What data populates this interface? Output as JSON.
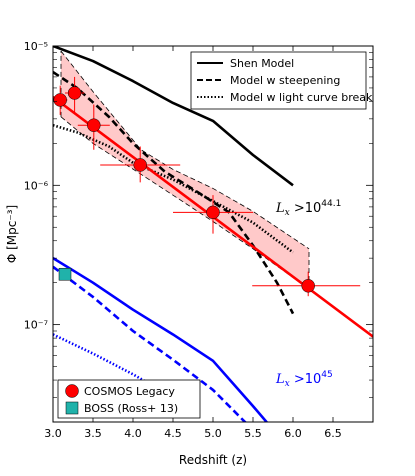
{
  "chart_data": {
    "type": "line",
    "xlabel": "Redshift (z)",
    "ylabel": "Φ [Mpc⁻³]",
    "xlim": [
      3.0,
      7.0
    ],
    "ylim": [
      2e-08,
      1e-05
    ],
    "yscale": "log",
    "x_ticks": [
      3.0,
      3.5,
      4.0,
      4.5,
      5.0,
      5.5,
      6.0,
      6.5
    ],
    "x_tick_labels": [
      "3.0",
      "3.5",
      "4.0",
      "4.5",
      "5.0",
      "5.5",
      "6.0",
      "6.5"
    ],
    "y_tick_labels": [
      "10⁻⁷",
      "10⁻⁶",
      "10⁻⁵"
    ],
    "line_legend_position": "top-right",
    "marker_legend_position": "bottom-left",
    "annotations": [
      {
        "text": "Lx >10^44.1",
        "color": "#000000"
      },
      {
        "text": "Lx >10^45",
        "color": "#0000ff"
      }
    ],
    "line_legend": [
      {
        "label": "Shen Model",
        "style": "solid"
      },
      {
        "label": "Model w steepening",
        "style": "dashed"
      },
      {
        "label": "Model w light curve break",
        "style": "dotted"
      }
    ],
    "marker_legend": [
      {
        "label": "COSMOS Legacy",
        "color": "#ff0000",
        "shape": "circle"
      },
      {
        "label": "BOSS (Ross+ 13)",
        "color": "#20b2aa",
        "shape": "square"
      }
    ],
    "lines": [
      {
        "group": "44.1",
        "style": "solid",
        "color": "#000000",
        "x": [
          3.0,
          3.5,
          4.0,
          4.5,
          5.0,
          5.5,
          6.0
        ],
        "y": [
          1e-05,
          7.8e-06,
          5.6e-06,
          3.9e-06,
          2.9e-06,
          1.65e-06,
          1e-06
        ]
      },
      {
        "group": "44.1",
        "style": "dashed",
        "color": "#000000",
        "x": [
          3.0,
          3.3,
          3.7,
          4.0,
          4.4,
          4.8,
          5.2,
          5.5,
          5.8,
          6.0
        ],
        "y": [
          6.5e-06,
          5e-06,
          3.1e-06,
          2e-06,
          1.25e-06,
          9e-07,
          6.4e-07,
          3.7e-07,
          2e-07,
          1.2e-07
        ]
      },
      {
        "group": "44.1",
        "style": "dotted",
        "color": "#000000",
        "x": [
          3.0,
          3.3,
          3.7,
          4.0,
          4.5,
          5.0,
          5.5,
          6.0
        ],
        "y": [
          2.7e-06,
          2.4e-06,
          1.9e-06,
          1.45e-06,
          1.1e-06,
          7.7e-07,
          5.4e-07,
          3.3e-07
        ]
      },
      {
        "group": "45",
        "style": "solid",
        "color": "#0000ff",
        "x": [
          3.0,
          3.5,
          4.0,
          4.5,
          5.0,
          5.5,
          6.0
        ],
        "y": [
          3e-07,
          2e-07,
          1.28e-07,
          8.5e-08,
          5.5e-08,
          2.6e-08,
          1.2e-08
        ]
      },
      {
        "group": "45",
        "style": "dashed",
        "color": "#0000ff",
        "x": [
          3.0,
          3.5,
          4.0,
          4.5,
          5.0,
          5.4,
          6.0
        ],
        "y": [
          2.6e-07,
          1.58e-07,
          9e-08,
          5.6e-08,
          3.4e-08,
          2e-08,
          1e-08
        ]
      },
      {
        "group": "45",
        "style": "dotted",
        "color": "#0000ff",
        "x": [
          3.0,
          3.5,
          4.0,
          4.5
        ],
        "y": [
          8.5e-08,
          6.2e-08,
          4.4e-08,
          3e-08
        ]
      }
    ],
    "fit": {
      "color": "#ff0000",
      "x": [
        3.0,
        7.0
      ],
      "y": [
        4.3e-06,
        8.2e-08
      ]
    },
    "confidence_band": {
      "color": "#ffc0c0",
      "x": [
        3.1,
        3.5,
        4.1,
        4.5,
        5.0,
        5.5,
        6.2
      ],
      "lower": [
        3.1e-06,
        2e-06,
        1.2e-06,
        8.5e-07,
        5.5e-07,
        3.5e-07,
        1.8e-07
      ],
      "upper": [
        9.2e-06,
        4.7e-06,
        1.8e-06,
        1.3e-06,
        9.5e-07,
        6.5e-07,
        3.5e-07
      ]
    },
    "cosmos_points": [
      {
        "z": 3.09,
        "phi": 4.1e-06,
        "xerr": [
          0.09,
          0.09
        ],
        "phi_lo": 3.2e-06,
        "phi_hi": 5.2e-06
      },
      {
        "z": 3.27,
        "phi": 4.6e-06,
        "xerr": [
          0.12,
          0.12
        ],
        "phi_lo": 3.3e-06,
        "phi_hi": 6e-06
      },
      {
        "z": 3.51,
        "phi": 2.7e-06,
        "xerr": [
          0.2,
          0.2
        ],
        "phi_lo": 1.8e-06,
        "phi_hi": 3.8e-06
      },
      {
        "z": 4.09,
        "phi": 1.4e-06,
        "xerr": [
          0.5,
          0.5
        ],
        "phi_lo": 1.05e-06,
        "phi_hi": 1.9e-06
      },
      {
        "z": 5.0,
        "phi": 6.4e-07,
        "xerr": [
          0.5,
          0.5
        ],
        "phi_lo": 4.5e-07,
        "phi_hi": 8.5e-07
      },
      {
        "z": 6.19,
        "phi": 1.9e-07,
        "xerr": [
          0.7,
          0.65
        ],
        "phi_lo": 1.6e-07,
        "phi_hi": 2.4e-07
      }
    ],
    "boss_points": [
      {
        "z": 3.15,
        "phi": 2.3e-07
      }
    ]
  }
}
